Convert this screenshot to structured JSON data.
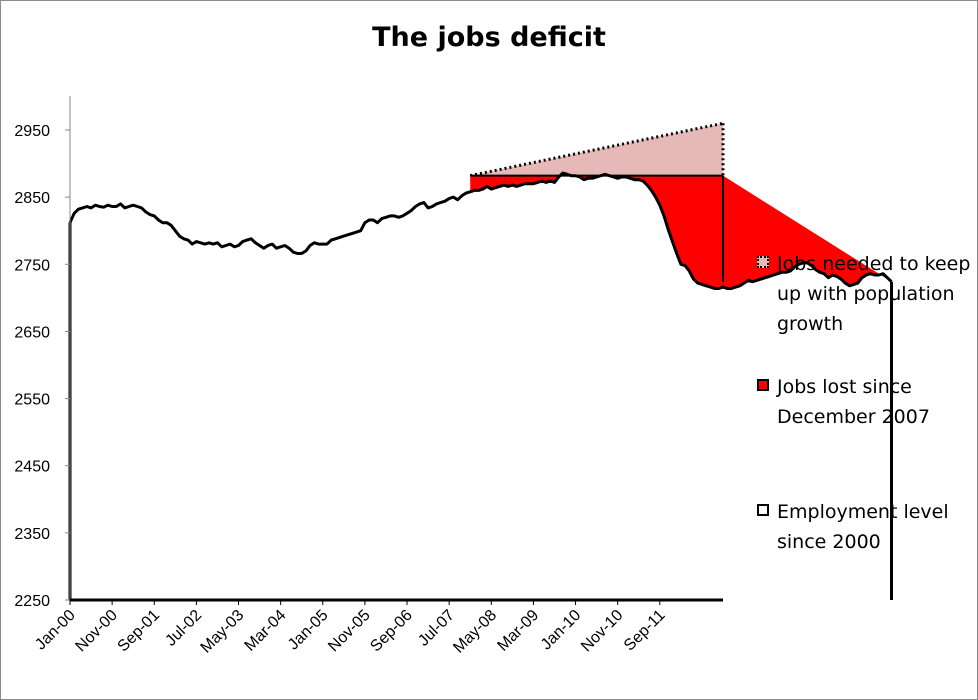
{
  "chart_data": {
    "type": "line",
    "title": "The jobs deficit",
    "xlabel": "",
    "ylabel": "",
    "ylim": [
      2250,
      2950
    ],
    "y_ticks": [
      2250,
      2350,
      2450,
      2550,
      2650,
      2750,
      2850,
      2950
    ],
    "x_ticks": [
      "Jan-00",
      "Nov-00",
      "Sep-01",
      "Jul-02",
      "May-03",
      "Mar-04",
      "Jan-05",
      "Nov-05",
      "Sep-06",
      "Jul-07",
      "May-08",
      "Mar-09",
      "Jan-10",
      "Nov-10",
      "Sep-11"
    ],
    "x_start": "Jan-00",
    "x_end": "Dec-12",
    "grid": false,
    "legend": "right",
    "series": [
      {
        "name": "Employment level since 2000",
        "color": "#000000",
        "start": "Jan-00",
        "values": [
          2812,
          2826,
          2832,
          2834,
          2836,
          2834,
          2838,
          2836,
          2835,
          2838,
          2836,
          2836,
          2840,
          2834,
          2836,
          2838,
          2836,
          2834,
          2828,
          2824,
          2822,
          2816,
          2812,
          2812,
          2808,
          2800,
          2792,
          2788,
          2786,
          2780,
          2784,
          2782,
          2780,
          2782,
          2780,
          2782,
          2776,
          2778,
          2780,
          2776,
          2778,
          2784,
          2786,
          2788,
          2782,
          2778,
          2774,
          2778,
          2780,
          2774,
          2776,
          2778,
          2774,
          2768,
          2766,
          2766,
          2770,
          2778,
          2782,
          2780,
          2780,
          2780,
          2786,
          2788,
          2790,
          2792,
          2794,
          2796,
          2798,
          2800,
          2812,
          2816,
          2816,
          2812,
          2818,
          2820,
          2822,
          2822,
          2820,
          2822,
          2826,
          2830,
          2836,
          2840,
          2842,
          2834,
          2836,
          2840,
          2842,
          2844,
          2848,
          2850,
          2846,
          2852,
          2856,
          2858,
          2860,
          2860,
          2862,
          2866,
          2862,
          2864,
          2866,
          2868,
          2866,
          2868,
          2866,
          2868,
          2870,
          2870,
          2870,
          2872,
          2874,
          2872,
          2874,
          2872,
          2880,
          2886,
          2884,
          2882,
          2882,
          2880,
          2876,
          2878,
          2878,
          2880,
          2882,
          2884,
          2882,
          2880,
          2878,
          2880,
          2880,
          2878,
          2876,
          2876,
          2874,
          2868,
          2860,
          2850,
          2838,
          2822,
          2802,
          2784,
          2766,
          2750,
          2748,
          2740,
          2728,
          2722,
          2720,
          2718,
          2716,
          2714,
          2714,
          2716,
          2714,
          2714,
          2716,
          2718,
          2722,
          2726,
          2724,
          2726,
          2728,
          2730,
          2732,
          2734,
          2736,
          2738,
          2738,
          2740,
          2746,
          2750,
          2752,
          2752,
          2748,
          2742,
          2738,
          2736,
          2730,
          2734,
          2732,
          2728,
          2722,
          2718,
          2720,
          2722,
          2730,
          2734,
          2736,
          2734,
          2734,
          2736,
          2730,
          2724
        ]
      },
      {
        "name": "Jobs lost since December 2007",
        "color": "#ff0000",
        "start": "Dec-07",
        "end": "Dec-12",
        "baseline": 2882
      },
      {
        "name": "Jobs needed to keep up with population growth",
        "color": "#e6b9b8",
        "start": "Dec-07",
        "end": "Dec-12",
        "start_value": 2882,
        "end_value": 2960
      }
    ]
  }
}
